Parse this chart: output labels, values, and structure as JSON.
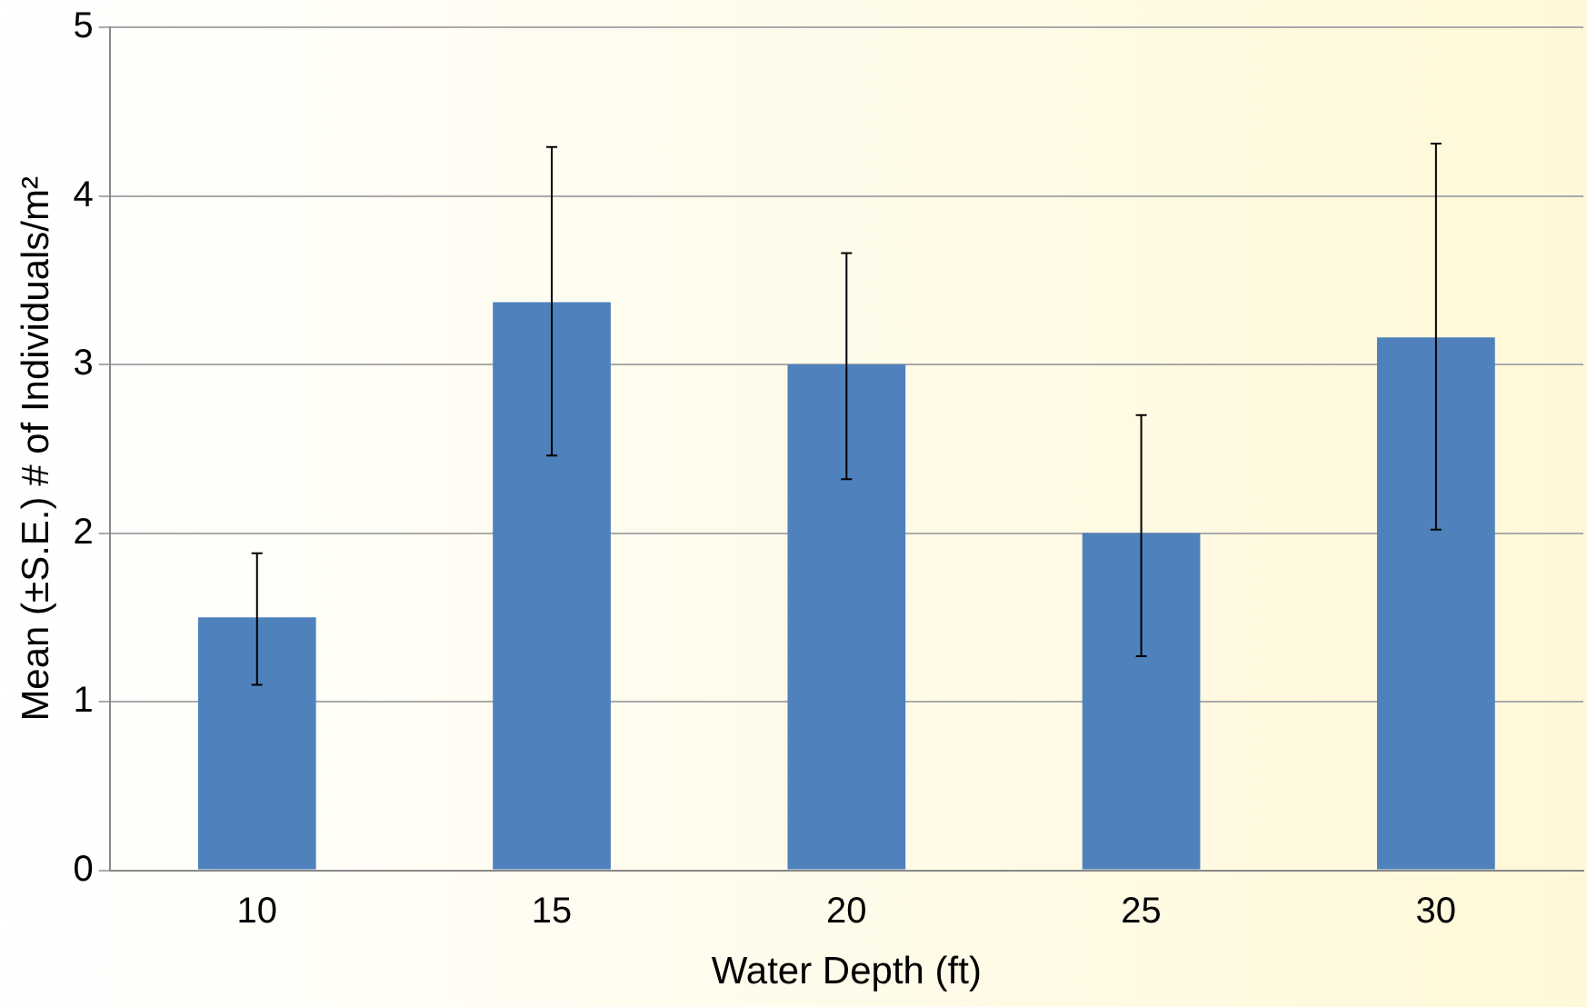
{
  "chart_data": {
    "type": "bar",
    "xlabel": "Water Depth (ft)",
    "ylabel": "Mean (±S.E.) # of Individuals/m²",
    "categories": [
      "10",
      "15",
      "20",
      "25",
      "30"
    ],
    "values": [
      1.5,
      3.37,
      3.0,
      2.0,
      3.16
    ],
    "errors": [
      [
        1.1,
        1.88
      ],
      [
        2.46,
        4.29
      ],
      [
        2.32,
        3.66
      ],
      [
        1.27,
        2.7
      ],
      [
        2.02,
        4.31
      ]
    ],
    "color": "#4f81bd",
    "ylim": [
      0,
      5
    ],
    "yticks": [
      0,
      1,
      2,
      3,
      4,
      5
    ],
    "grid": "y"
  }
}
